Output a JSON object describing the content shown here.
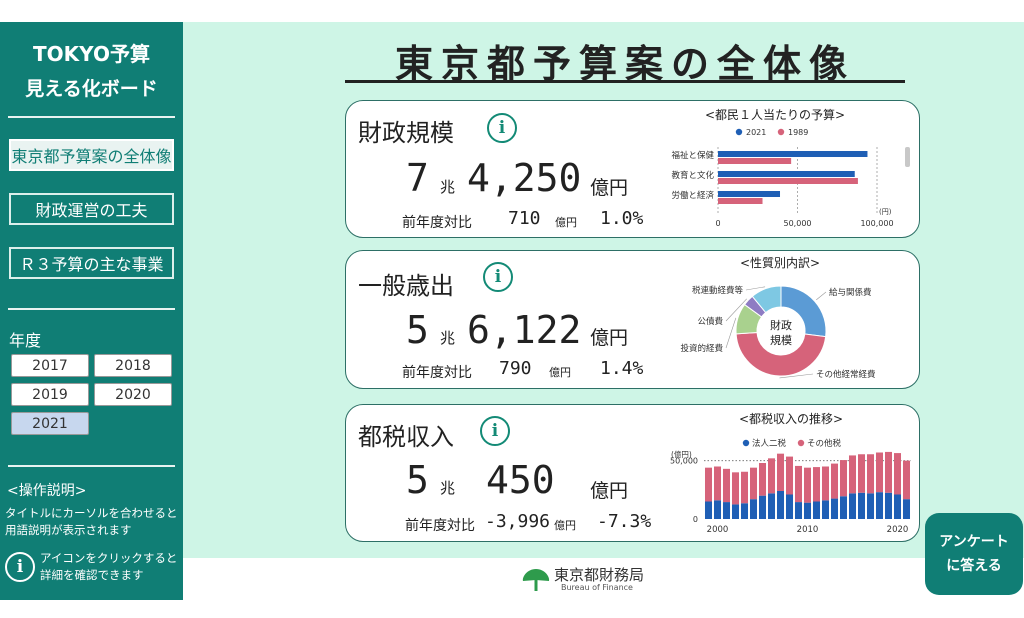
{
  "sidebar": {
    "title_line1": "TOKYO予算",
    "title_line2": "見える化ボード",
    "nav": [
      {
        "label": "東京都予算案の全体像",
        "active": true
      },
      {
        "label": "財政運営の工夫",
        "active": false
      },
      {
        "label": "Ｒ３予算の主な事業",
        "active": false
      }
    ],
    "year_label": "年度",
    "years": [
      "2017",
      "2018",
      "2019",
      "2020",
      "2021"
    ],
    "selected_year": "2021",
    "help_title": "<操作説明>",
    "help_line1a": "タイトルにカーソルを合わせると",
    "help_line1b": "用語説明が表示されます",
    "help_line2a": "アイコンをクリックすると",
    "help_line2b": "詳細を確認できます",
    "info_glyph": "i"
  },
  "main": {
    "title": "東京都予算案の全体像"
  },
  "cards": [
    {
      "title": "財政規模",
      "num1": "7",
      "unit1": "兆",
      "num2": "4,250",
      "unit2": "億円",
      "yoy_label": "前年度対比",
      "yoy_value": "710",
      "yoy_unit": "億円",
      "yoy_pct": "1.0%"
    },
    {
      "title": "一般歳出",
      "num1": "5",
      "unit1": "兆",
      "num2": "6,122",
      "unit2": "億円",
      "yoy_label": "前年度対比",
      "yoy_value": "790",
      "yoy_unit": "億円",
      "yoy_pct": "1.4%"
    },
    {
      "title": "都税収入",
      "num1": "5",
      "unit1": "兆",
      "num2": "450",
      "unit2": "億円",
      "yoy_label": "前年度対比",
      "yoy_value": "-3,996",
      "yoy_unit": "億円",
      "yoy_pct": "-7.3%"
    }
  ],
  "colors": {
    "teal": "#107e75",
    "mint": "#cef5e6",
    "blue": "#1f5fb5",
    "pink": "#d6637a"
  },
  "chart_data": [
    {
      "type": "bar",
      "orientation": "horizontal",
      "title": "<都民１人当たりの予算>",
      "categories": [
        "福祉と保健",
        "教育と文化",
        "労働と経済"
      ],
      "series": [
        {
          "name": "2021",
          "color": "#1f5fb5",
          "values": [
            94000,
            86000,
            39000
          ]
        },
        {
          "name": "1989",
          "color": "#d6637a",
          "values": [
            46000,
            88000,
            28000
          ]
        }
      ],
      "xlim": [
        0,
        100000
      ],
      "xticks": [
        "0",
        "50,000",
        "100,000"
      ],
      "xunit": "(円)"
    },
    {
      "type": "pie",
      "title": "<性質別内訳>",
      "center_label_line1": "財政",
      "center_label_line2": "規模",
      "slices": [
        {
          "label": "給与関係費",
          "value": 27,
          "color": "#5b9bd5"
        },
        {
          "label": "その他経常経費",
          "value": 47,
          "color": "#d6637a"
        },
        {
          "label": "投資的経費",
          "value": 11,
          "color": "#a9d18e"
        },
        {
          "label": "公債費",
          "value": 4,
          "color": "#8e7cc3"
        },
        {
          "label": "税連動経費等",
          "value": 11,
          "color": "#7ec8e3"
        }
      ]
    },
    {
      "type": "bar",
      "stacked": true,
      "title": "<都税収入の推移>",
      "yunit": "(億円)",
      "ylim": [
        0,
        60000
      ],
      "yticks": [
        "0",
        "50,000"
      ],
      "xtick_labels": [
        "2000",
        "2010",
        "2020"
      ],
      "x": [
        1999,
        2000,
        2001,
        2002,
        2003,
        2004,
        2005,
        2006,
        2007,
        2008,
        2009,
        2010,
        2011,
        2012,
        2013,
        2014,
        2015,
        2016,
        2017,
        2018,
        2019,
        2020,
        2021
      ],
      "series": [
        {
          "name": "法人二税",
          "color": "#1f5fb5",
          "values": [
            15000,
            16000,
            14500,
            12500,
            13500,
            17000,
            20000,
            22000,
            24000,
            21000,
            14500,
            14000,
            15000,
            16000,
            17500,
            19500,
            22000,
            22500,
            22000,
            23000,
            22500,
            21000,
            17000
          ]
        },
        {
          "name": "その他税",
          "color": "#d6637a",
          "values": [
            29000,
            29000,
            28500,
            27500,
            27000,
            27000,
            28000,
            30000,
            32000,
            32500,
            31000,
            30000,
            29500,
            29000,
            30000,
            31000,
            32500,
            33000,
            33500,
            34000,
            35000,
            35500,
            33000
          ]
        }
      ]
    }
  ],
  "footer": {
    "logo_text": "東京都財務局",
    "logo_sub": "Bureau of Finance"
  },
  "survey": {
    "line1": "アンケート",
    "line2": "に答える"
  }
}
